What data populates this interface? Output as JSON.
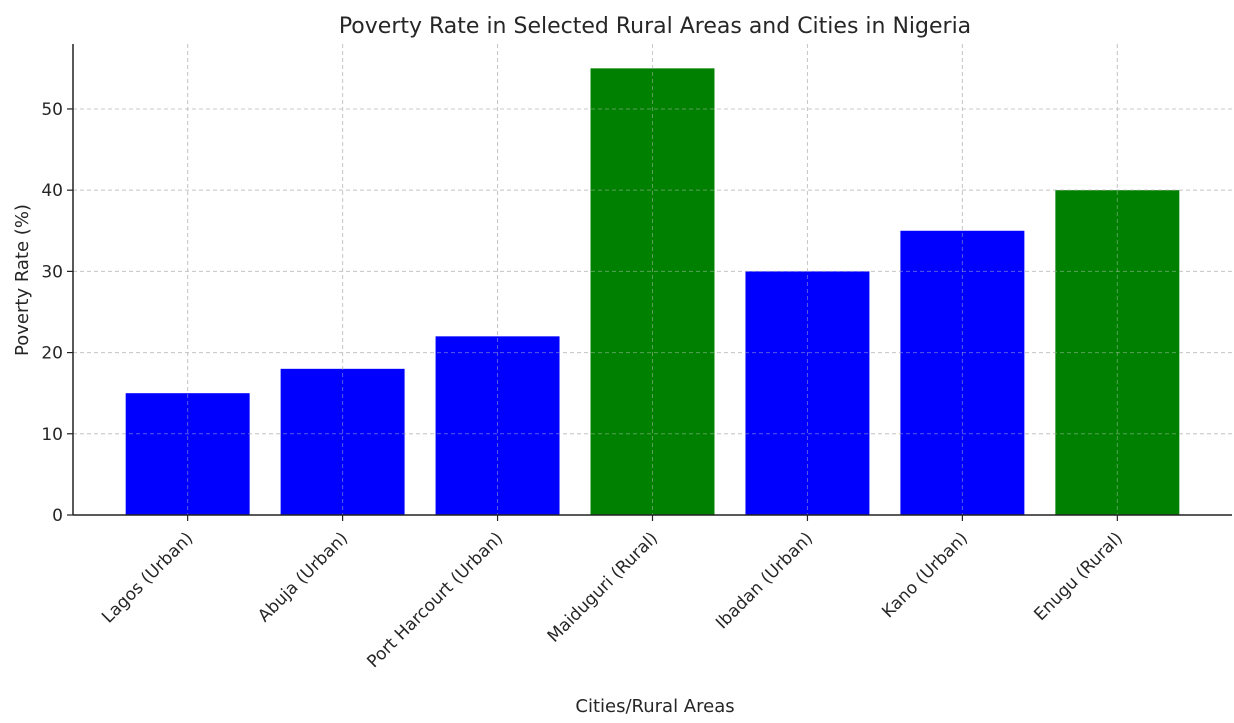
{
  "chart_data": {
    "type": "bar",
    "title": "Poverty Rate in Selected Rural Areas and Cities in Nigeria",
    "xlabel": "Cities/Rural Areas",
    "ylabel": "Poverty Rate (%)",
    "categories": [
      "Lagos (Urban)",
      "Abuja (Urban)",
      "Port Harcourt (Urban)",
      "Maiduguri (Rural)",
      "Ibadan (Urban)",
      "Kano (Urban)",
      "Enugu (Rural)"
    ],
    "values": [
      15,
      18,
      22,
      55,
      30,
      35,
      40
    ],
    "bar_colors": [
      "#0000ff",
      "#0000ff",
      "#0000ff",
      "#008000",
      "#0000ff",
      "#0000ff",
      "#008000"
    ],
    "ylim": [
      0,
      58
    ],
    "yticks": [
      0,
      10,
      20,
      30,
      40,
      50
    ],
    "grid": true,
    "legend": "none"
  }
}
